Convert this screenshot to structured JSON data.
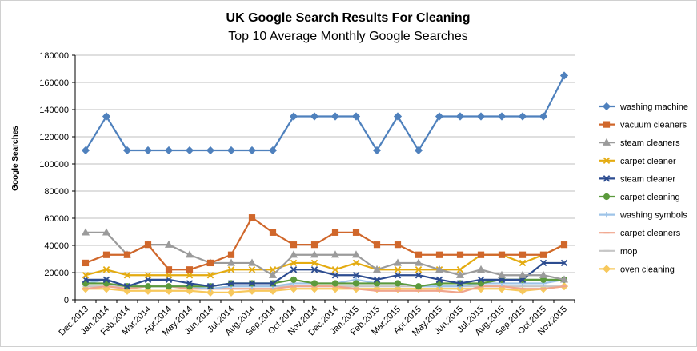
{
  "chart_data": {
    "type": "line",
    "title": "UK Google Search Results For Cleaning",
    "subtitle": "Top 10 Average Monthly Google Searches",
    "xlabel": "",
    "ylabel": "Google Searches",
    "ylim": [
      0,
      180000
    ],
    "yticks": [
      0,
      20000,
      40000,
      60000,
      80000,
      100000,
      120000,
      140000,
      160000,
      180000
    ],
    "grid": "horizontal",
    "legend_position": "right",
    "categories": [
      "Dec.2013",
      "Jan.2014",
      "Feb.2014",
      "Mar.2014",
      "Apr.2014",
      "May.2014",
      "Jun.2014",
      "Jul.2014",
      "Aug.2014",
      "Sep.2014",
      "Oct.2014",
      "Nov.2014",
      "Dec.2014",
      "Jan.2015",
      "Feb.2015",
      "Mar.2015",
      "Apr.2015",
      "May.2015",
      "Jun.2015",
      "Jul.2015",
      "Aug.2015",
      "Sep.2015",
      "Oct.2015",
      "Nov.2015"
    ],
    "series": [
      {
        "name": "washing machine",
        "color": "#4f81bd",
        "marker": "diamond",
        "values": [
          110000,
          135000,
          110000,
          110000,
          110000,
          110000,
          110000,
          110000,
          110000,
          110000,
          135000,
          135000,
          135000,
          135000,
          110000,
          135000,
          110000,
          135000,
          135000,
          135000,
          135000,
          135000,
          135000,
          165000
        ]
      },
      {
        "name": "vacuum cleaners",
        "color": "#d0672b",
        "marker": "square",
        "values": [
          27100,
          33100,
          33100,
          40500,
          22200,
          22200,
          27100,
          33100,
          60500,
          49500,
          40500,
          40500,
          49500,
          49500,
          40500,
          40500,
          33100,
          33100,
          33100,
          33100,
          33100,
          33100,
          33100,
          40500
        ]
      },
      {
        "name": "steam cleaners",
        "color": "#9b9b9b",
        "marker": "triangle",
        "values": [
          49500,
          49500,
          33100,
          40500,
          40500,
          33100,
          27100,
          27100,
          27100,
          18100,
          33100,
          33100,
          33100,
          33100,
          22200,
          27100,
          27100,
          22200,
          18100,
          22200,
          18100,
          18100,
          18100,
          14800
        ]
      },
      {
        "name": "carpet cleaner",
        "color": "#e4ab10",
        "marker": "x",
        "values": [
          18100,
          22200,
          18100,
          18100,
          18100,
          18100,
          18100,
          22200,
          22200,
          22200,
          27100,
          27100,
          22200,
          27100,
          22200,
          22200,
          22200,
          22200,
          22200,
          33100,
          33100,
          27100,
          33100,
          40500
        ]
      },
      {
        "name": "steam cleaner",
        "color": "#2c4c90",
        "marker": "x",
        "values": [
          14800,
          14800,
          9900,
          14800,
          14800,
          12100,
          9900,
          12100,
          12100,
          12100,
          22200,
          22200,
          18100,
          18100,
          14800,
          18100,
          18100,
          14800,
          12100,
          14800,
          14800,
          14800,
          27100,
          27100
        ]
      },
      {
        "name": "carpet cleaning",
        "color": "#5b9a3c",
        "marker": "circle",
        "values": [
          12100,
          12100,
          9900,
          9900,
          9900,
          9900,
          9900,
          12100,
          12100,
          12100,
          14800,
          12100,
          12100,
          12100,
          12100,
          12100,
          9900,
          12100,
          12100,
          12100,
          14800,
          14800,
          14800,
          14800
        ]
      },
      {
        "name": "washing symbols",
        "color": "#9ec4e8",
        "marker": "plus",
        "values": [
          12100,
          14800,
          9900,
          9900,
          9900,
          9900,
          8100,
          9900,
          9900,
          9900,
          12100,
          12100,
          12100,
          14800,
          12100,
          12100,
          9900,
          9900,
          9900,
          12100,
          12100,
          12100,
          12100,
          14800
        ]
      },
      {
        "name": "carpet cleaners",
        "color": "#f0a58c",
        "marker": "dash",
        "values": [
          8100,
          9900,
          8100,
          9900,
          9900,
          8100,
          8100,
          8100,
          8100,
          8100,
          9900,
          9900,
          9900,
          8100,
          6600,
          6600,
          6600,
          6600,
          5400,
          9900,
          9900,
          8100,
          8100,
          9900
        ]
      },
      {
        "name": "mop",
        "color": "#c6c6c6",
        "marker": "dash",
        "values": [
          9900,
          9900,
          9900,
          9900,
          9900,
          9900,
          8100,
          9900,
          9900,
          9900,
          9900,
          9900,
          9900,
          9900,
          9900,
          9900,
          9900,
          9900,
          9900,
          9900,
          9900,
          9900,
          9900,
          9900
        ]
      },
      {
        "name": "oven cleaning",
        "color": "#f7c85c",
        "marker": "diamond",
        "values": [
          8100,
          8100,
          6600,
          6600,
          6600,
          6600,
          5400,
          5400,
          6600,
          6600,
          8100,
          8100,
          8100,
          8100,
          8100,
          8100,
          8100,
          8100,
          8100,
          8100,
          8100,
          6600,
          8100,
          9900
        ]
      }
    ]
  }
}
